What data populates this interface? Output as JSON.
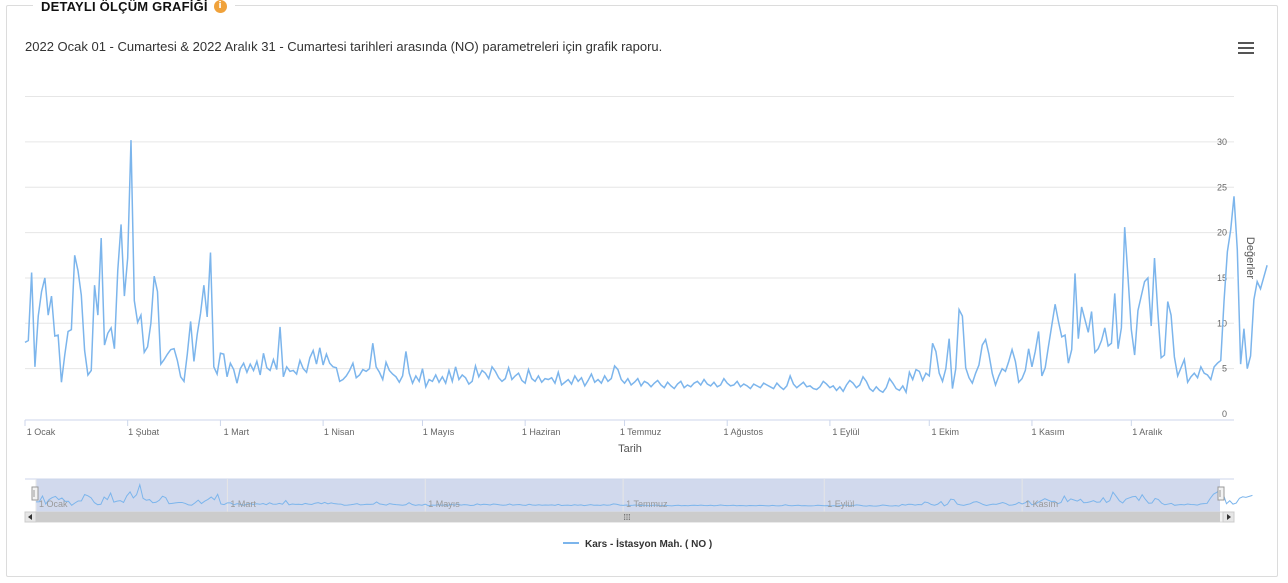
{
  "panel": {
    "title": "DETAYLI ÖLÇÜM GRAFİĞİ",
    "info_icon": "info-icon"
  },
  "subtitle": "2022 Ocak 01 - Cumartesi & 2022 Aralık 31 - Cumartesi tarihleri arasında (NO) parametreleri için grafik raporu.",
  "menu_icon": "hamburger-menu-icon",
  "chart_data": {
    "type": "line",
    "title": "",
    "xlabel": "Tarih",
    "ylabel": "Değerler",
    "ylim": [
      0,
      35
    ],
    "yticks": [
      0,
      5,
      10,
      15,
      20,
      25,
      30
    ],
    "xticks": [
      "1 Ocak",
      "1 Şubat",
      "1 Mart",
      "1 Nisan",
      "1 Mayıs",
      "1 Haziran",
      "1 Temmuz",
      "1 Ağustos",
      "1 Eylül",
      "1 Ekim",
      "1 Kasım",
      "1 Aralık"
    ],
    "navigator_ticks": [
      "1 Ocak",
      "1 Mart",
      "1 Mayıs",
      "1 Temmuz",
      "1 Eylül",
      "1 Kasım"
    ],
    "series": [
      {
        "name": "Kars - İstasyon Mah. ( NO )",
        "color": "#7cb5ec",
        "x_start": "2022-01-01",
        "x_step_days": 1,
        "values": [
          7.9,
          8.1,
          15.6,
          5.2,
          10.8,
          13.5,
          15.0,
          10.9,
          13.0,
          8.6,
          8.7,
          3.5,
          6.5,
          9.1,
          9.3,
          17.5,
          15.8,
          13.1,
          7.0,
          4.3,
          4.8,
          14.2,
          10.9,
          19.4,
          7.6,
          8.9,
          9.5,
          7.2,
          15.8,
          20.9,
          13.0,
          17.2,
          30.2,
          12.5,
          10.1,
          10.9,
          6.8,
          7.4,
          10.0,
          15.2,
          13.5,
          5.5,
          6.0,
          6.6,
          7.1,
          7.2,
          5.9,
          4.1,
          3.6,
          6.6,
          10.2,
          5.8,
          8.8,
          11.1,
          14.2,
          10.7,
          17.8,
          5.2,
          4.4,
          6.7,
          6.6,
          4.1,
          5.6,
          4.9,
          3.4,
          5.0,
          5.6,
          4.6,
          5.5,
          4.8,
          5.8,
          4.3,
          6.7,
          5.1,
          4.8,
          6.0,
          4.9,
          9.6,
          4.1,
          5.2,
          4.7,
          4.8,
          4.4,
          5.9,
          5.0,
          4.6,
          6.2,
          7.0,
          5.5,
          7.3,
          5.4,
          6.6,
          5.6,
          5.2,
          5.1,
          3.6,
          3.8,
          4.2,
          4.8,
          5.6,
          4.0,
          4.3,
          4.9,
          4.7,
          5.0,
          7.8,
          5.2,
          4.6,
          3.8,
          5.7,
          4.8,
          4.4,
          4.1,
          3.5,
          4.2,
          6.9,
          4.5,
          3.4,
          4.2,
          3.6,
          5.0,
          3.0,
          3.8,
          3.6,
          4.3,
          3.5,
          4.1,
          3.4,
          4.8,
          3.6,
          5.2,
          3.8,
          4.3,
          4.0,
          3.3,
          3.6,
          5.3,
          4.1,
          4.8,
          4.5,
          3.9,
          5.2,
          4.7,
          4.0,
          3.6,
          3.9,
          5.1,
          3.8,
          4.2,
          4.5,
          3.7,
          3.4,
          4.9,
          3.9,
          3.6,
          4.2,
          3.5,
          3.9,
          3.8,
          4.0,
          3.4,
          4.6,
          3.2,
          3.5,
          3.8,
          3.3,
          4.2,
          3.6,
          4.0,
          3.1,
          3.7,
          4.4,
          3.5,
          3.8,
          3.4,
          4.2,
          3.6,
          3.9,
          5.3,
          4.9,
          3.8,
          3.4,
          3.9,
          3.2,
          3.5,
          3.9,
          3.1,
          3.6,
          3.4,
          3.0,
          3.4,
          3.7,
          3.2,
          2.9,
          3.5,
          3.1,
          2.8,
          3.3,
          3.6,
          2.9,
          3.2,
          3.0,
          3.4,
          3.6,
          3.2,
          3.8,
          3.3,
          3.1,
          3.5,
          3.0,
          3.2,
          3.9,
          3.4,
          3.1,
          3.2,
          3.6,
          3.0,
          3.3,
          3.1,
          2.8,
          3.3,
          3.1,
          2.9,
          3.4,
          3.2,
          3.0,
          2.8,
          3.4,
          3.0,
          2.7,
          3.1,
          4.2,
          3.3,
          2.9,
          3.2,
          3.5,
          3.0,
          3.1,
          2.8,
          2.7,
          3.0,
          3.6,
          3.3,
          2.9,
          3.1,
          2.6,
          3.0,
          2.5,
          3.2,
          3.7,
          3.4,
          2.9,
          3.2,
          4.1,
          3.6,
          2.8,
          2.5,
          3.0,
          2.6,
          2.4,
          2.9,
          3.9,
          3.4,
          2.8,
          2.6,
          3.1,
          2.4,
          4.6,
          3.8,
          4.9,
          4.7,
          3.7,
          4.5,
          4.2,
          7.8,
          6.9,
          4.5,
          3.6,
          5.0,
          8.3,
          2.8,
          5.0,
          11.5,
          10.8,
          5.1,
          4.0,
          3.4,
          4.5,
          5.4,
          7.6,
          8.2,
          6.6,
          4.5,
          3.2,
          4.2,
          5.0,
          4.7,
          5.8,
          7.1,
          5.8,
          3.5,
          3.9,
          4.8,
          7.2,
          5.2,
          6.9,
          9.1,
          4.2,
          5.1,
          7.5,
          9.8,
          12.1,
          10.2,
          8.5,
          8.7,
          5.6,
          7.1,
          15.5,
          8.3,
          11.8,
          10.4,
          9.0,
          11.3,
          6.8,
          7.2,
          8.1,
          9.5,
          7.5,
          7.8,
          13.3,
          7.2,
          9.5,
          20.6,
          15.1,
          9.3,
          6.5,
          11.4,
          13.0,
          14.6,
          15.0,
          9.7,
          17.2,
          11.2,
          6.2,
          6.5,
          12.4,
          10.9,
          6.3,
          4.2,
          5.1,
          6.0,
          3.5,
          4.1,
          4.5,
          4.0,
          5.2,
          4.5,
          4.3,
          3.8,
          5.2,
          5.6,
          5.9,
          12.5,
          17.9,
          20.3,
          24.0,
          18.1,
          5.5,
          9.4,
          5.0,
          6.4,
          12.6,
          14.6,
          13.8,
          15.1,
          16.4
        ]
      }
    ],
    "legend": "bottom-center",
    "grid": true,
    "navigator": true
  },
  "legend": {
    "series_label": "Kars - İstasyon Mah. ( NO )"
  }
}
